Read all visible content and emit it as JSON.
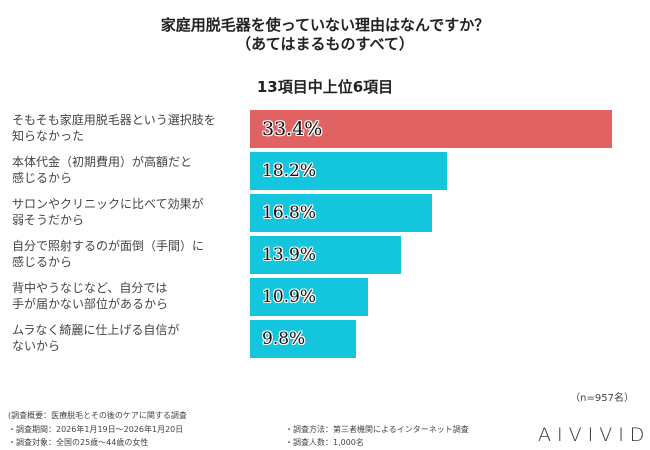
{
  "chart_data": {
    "type": "bar",
    "orientation": "horizontal",
    "title": "家庭用脱毛器を使っていない理由はなんですか？\n（あてはまるものすべて）",
    "subtitle": "13項目中上位6項目",
    "categories": [
      "そもそも家庭用脱毛器という選択肢を\n知らなかった",
      "本体代金（初期費用）が高額だと\n感じるから",
      "サロンやクリニックに比べて効果が\n弱そうだから",
      "自分で照射するのが面倒（手間）に\n感じるから",
      "背中やうなじなど、自分では\n手が届かない部位があるから",
      "ムラなく綺麗に仕上げる自信が\nないから"
    ],
    "values": [
      33.4,
      18.2,
      16.8,
      13.9,
      10.9,
      9.8
    ],
    "labels": [
      "33.4%",
      "18.2%",
      "16.8%",
      "13.9%",
      "10.9%",
      "9.8%"
    ],
    "colors": [
      "#e06262",
      "#13c5dd",
      "#13c5dd",
      "#13c5dd",
      "#13c5dd",
      "#13c5dd"
    ],
    "note": "（n=957名）"
  },
  "footer": {
    "overview": "(調査概要：医療脱毛とその後のケアに関する調査",
    "period": "・調査期間：2026年1月19日～2026年1月20日",
    "target": "・調査対象：全国の25歳～44歳の女性",
    "method": "・調査方法：第三者機関によるインターネット調査",
    "count": "・調査人数：1,000名",
    "logo": "AIVIVID"
  }
}
